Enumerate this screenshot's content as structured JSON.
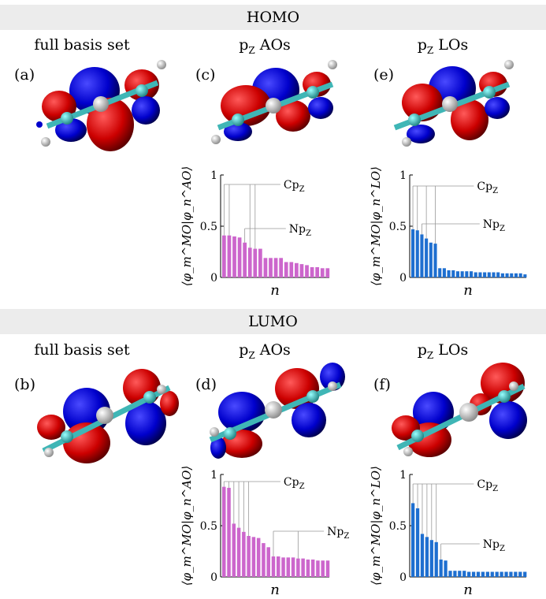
{
  "sections": {
    "homo": "HOMO",
    "lumo": "LUMO"
  },
  "column_titles": {
    "full": "full basis set",
    "pz_aos": "p",
    "pz_aos_sub": "Z",
    "pz_aos_rest": " AOs",
    "pz_los": "p",
    "pz_los_sub": "Z",
    "pz_los_rest": " LOs"
  },
  "panel_labels": [
    "(a)",
    "(b)",
    "(c)",
    "(d)",
    "(e)",
    "(f)"
  ],
  "colors": {
    "ao_bars": "#cc66cc",
    "lo_bars": "#1e6fd0",
    "lobe_positive": "#cc0000",
    "lobe_negative": "#0000cc",
    "carbon": "#3fb6b6",
    "band": "#ececec"
  },
  "chart_data": [
    {
      "id": "homo-ao",
      "type": "bar",
      "ylabel": "⟨φ_m^MO|φ_n^AO⟩",
      "xlabel": "n",
      "ylim": [
        0,
        1
      ],
      "yticks": [
        "0",
        "0.5",
        "1"
      ],
      "annotations": [
        "Cp",
        "Np"
      ],
      "color_key": "ao_bars",
      "values": [
        0.41,
        0.41,
        0.4,
        0.39,
        0.34,
        0.29,
        0.28,
        0.28,
        0.19,
        0.19,
        0.19,
        0.19,
        0.15,
        0.15,
        0.14,
        0.13,
        0.12,
        0.1,
        0.1,
        0.09,
        0.09
      ],
      "cp_bars": [
        0,
        1,
        5,
        6
      ],
      "np_bars": [
        4
      ]
    },
    {
      "id": "homo-lo",
      "type": "bar",
      "ylabel": "⟨φ_m^MO|φ_n^LO⟩",
      "xlabel": "n",
      "ylim": [
        0,
        1
      ],
      "yticks": [
        "0",
        "0.5",
        "1"
      ],
      "annotations": [
        "Cp",
        "Np"
      ],
      "color_key": "lo_bars",
      "values": [
        0.47,
        0.46,
        0.42,
        0.38,
        0.34,
        0.33,
        0.09,
        0.09,
        0.07,
        0.07,
        0.06,
        0.06,
        0.06,
        0.06,
        0.05,
        0.05,
        0.05,
        0.05,
        0.05,
        0.05,
        0.04,
        0.04,
        0.04,
        0.04,
        0.04,
        0.03
      ],
      "cp_bars": [
        0,
        1,
        3,
        5
      ],
      "np_bars": [
        2
      ]
    },
    {
      "id": "lumo-ao",
      "type": "bar",
      "ylabel": "⟨φ_m^MO|φ_n^AO⟩",
      "xlabel": "n",
      "ylim": [
        0,
        1
      ],
      "yticks": [
        "0",
        "0.5",
        "1"
      ],
      "annotations": [
        "Cp",
        "Np"
      ],
      "color_key": "ao_bars",
      "values": [
        0.88,
        0.87,
        0.52,
        0.48,
        0.44,
        0.4,
        0.39,
        0.38,
        0.33,
        0.29,
        0.2,
        0.2,
        0.19,
        0.19,
        0.19,
        0.18,
        0.18,
        0.17,
        0.17,
        0.16,
        0.16,
        0.16
      ],
      "cp_bars": [
        0,
        1,
        2,
        3,
        4,
        5
      ],
      "np_bars": [
        10,
        15
      ]
    },
    {
      "id": "lumo-lo",
      "type": "bar",
      "ylabel": "⟨φ_m^MO|φ_n^LO⟩",
      "xlabel": "n",
      "ylim": [
        0,
        1
      ],
      "yticks": [
        "0",
        "0.5",
        "1"
      ],
      "annotations": [
        "Cp",
        "Np"
      ],
      "color_key": "lo_bars",
      "values": [
        0.72,
        0.67,
        0.42,
        0.39,
        0.36,
        0.34,
        0.17,
        0.16,
        0.06,
        0.06,
        0.06,
        0.06,
        0.05,
        0.05,
        0.05,
        0.05,
        0.05,
        0.05,
        0.05,
        0.05,
        0.05,
        0.05,
        0.05,
        0.05,
        0.05
      ],
      "cp_bars": [
        0,
        1,
        2,
        3,
        4,
        5
      ],
      "np_bars": [
        6
      ]
    }
  ]
}
